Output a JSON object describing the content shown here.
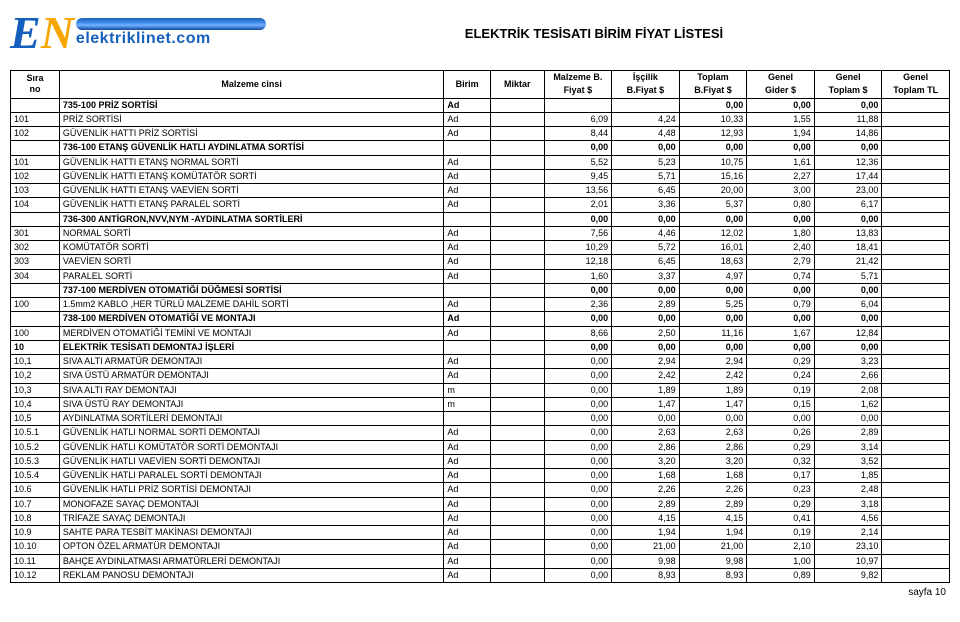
{
  "brand": {
    "e": "E",
    "n": "N",
    "domain": "elektriklinet.com"
  },
  "title": "ELEKTRİK TESİSATI BİRİM FİYAT LİSTESİ",
  "footer": "sayfa 10",
  "header": {
    "top": [
      "",
      "",
      "",
      "",
      "Malzeme B.",
      "İşçilik",
      "Toplam",
      "Genel",
      "Genel",
      "Genel"
    ],
    "bottom": [
      "Sıra no",
      "Malzeme cinsi",
      "Birim",
      "Miktar",
      "Fiyat $",
      "B.Fiyat $",
      "B.Fiyat $",
      "Gider $",
      "Toplam $",
      "Toplam TL"
    ]
  },
  "rows": [
    {
      "section": true,
      "no": "",
      "name": "735-100 PRİZ SORTİSİ",
      "birim": "Ad",
      "miktar": "",
      "c": [
        "",
        "",
        "0,00",
        "0,00",
        "0,00",
        ""
      ]
    },
    {
      "no": "101",
      "name": "PRİZ SORTİSİ",
      "birim": "Ad",
      "miktar": "",
      "c": [
        "6,09",
        "4,24",
        "10,33",
        "1,55",
        "11,88",
        ""
      ]
    },
    {
      "no": "102",
      "name": "GÜVENLİK HATTI PRİZ SORTİSİ",
      "birim": "Ad",
      "miktar": "",
      "c": [
        "8,44",
        "4,48",
        "12,93",
        "1,94",
        "14,86",
        ""
      ]
    },
    {
      "section": true,
      "no": "",
      "name": "736-100 ETANŞ GÜVENLİK HATLI AYDINLATMA SORTİSİ",
      "birim": "",
      "miktar": "",
      "c": [
        "0,00",
        "0,00",
        "0,00",
        "0,00",
        "0,00",
        ""
      ]
    },
    {
      "no": "101",
      "name": "GÜVENLİK HATTI ETANŞ NORMAL SORTİ",
      "birim": "Ad",
      "miktar": "",
      "c": [
        "5,52",
        "5,23",
        "10,75",
        "1,61",
        "12,36",
        ""
      ]
    },
    {
      "no": "102",
      "name": "GÜVENLİK HATTI ETANŞ KOMÜTATÖR SORTİ",
      "birim": "Ad",
      "miktar": "",
      "c": [
        "9,45",
        "5,71",
        "15,16",
        "2,27",
        "17,44",
        ""
      ]
    },
    {
      "no": "103",
      "name": "GÜVENLİK HATTI ETANŞ VAEVİEN SORTİ",
      "birim": "Ad",
      "miktar": "",
      "c": [
        "13,56",
        "6,45",
        "20,00",
        "3,00",
        "23,00",
        ""
      ]
    },
    {
      "no": "104",
      "name": "GÜVENLİK HATTI ETANŞ PARALEL SORTİ",
      "birim": "Ad",
      "miktar": "",
      "c": [
        "2,01",
        "3,36",
        "5,37",
        "0,80",
        "6,17",
        ""
      ]
    },
    {
      "section": true,
      "no": "",
      "name": "736-300 ANTİGRON,NVV,NYM -AYDINLATMA SORTİLERİ",
      "birim": "",
      "miktar": "",
      "c": [
        "0,00",
        "0,00",
        "0,00",
        "0,00",
        "0,00",
        ""
      ]
    },
    {
      "no": "301",
      "name": "NORMAL SORTİ",
      "birim": "Ad",
      "miktar": "",
      "c": [
        "7,56",
        "4,46",
        "12,02",
        "1,80",
        "13,83",
        ""
      ]
    },
    {
      "no": "302",
      "name": "KOMÜTATÖR SORTİ",
      "birim": "Ad",
      "miktar": "",
      "c": [
        "10,29",
        "5,72",
        "16,01",
        "2,40",
        "18,41",
        ""
      ]
    },
    {
      "no": "303",
      "name": "VAEVİEN SORTİ",
      "birim": "Ad",
      "miktar": "",
      "c": [
        "12,18",
        "6,45",
        "18,63",
        "2,79",
        "21,42",
        ""
      ]
    },
    {
      "no": "304",
      "name": "PARALEL SORTİ",
      "birim": "Ad",
      "miktar": "",
      "c": [
        "1,60",
        "3,37",
        "4,97",
        "0,74",
        "5,71",
        ""
      ]
    },
    {
      "section": true,
      "no": "",
      "name": "737-100 MERDİVEN OTOMATİĞİ DÜĞMESİ SORTİSİ",
      "birim": "",
      "miktar": "",
      "c": [
        "0,00",
        "0,00",
        "0,00",
        "0,00",
        "0,00",
        ""
      ]
    },
    {
      "no": "100",
      "name": "1.5mm2 KABLO ,HER TÜRLÜ MALZEME DAHİL SORTİ",
      "birim": "Ad",
      "miktar": "",
      "c": [
        "2,36",
        "2,89",
        "5,25",
        "0,79",
        "6,04",
        ""
      ]
    },
    {
      "section": true,
      "no": "",
      "name": "738-100 MERDİVEN OTOMATİĞİ VE MONTAJI",
      "birim": "Ad",
      "miktar": "",
      "c": [
        "0,00",
        "0,00",
        "0,00",
        "0,00",
        "0,00",
        ""
      ]
    },
    {
      "no": "100",
      "name": "MERDİVEN OTOMATİĞİ TEMİNİ VE MONTAJI",
      "birim": "Ad",
      "miktar": "",
      "c": [
        "8,66",
        "2,50",
        "11,16",
        "1,67",
        "12,84",
        ""
      ]
    },
    {
      "section": true,
      "no": "10",
      "name": "ELEKTRİK TESİSATI DEMONTAJ İŞLERİ",
      "birim": "",
      "miktar": "",
      "c": [
        "0,00",
        "0,00",
        "0,00",
        "0,00",
        "0,00",
        ""
      ]
    },
    {
      "no": "10,1",
      "name": "SIVA ALTI ARMATÜR DEMONTAJI",
      "birim": "Ad",
      "miktar": "",
      "c": [
        "0,00",
        "2,94",
        "2,94",
        "0,29",
        "3,23",
        ""
      ]
    },
    {
      "no": "10,2",
      "name": "SIVA ÜSTÜ ARMATÜR DEMONTAJI",
      "birim": "Ad",
      "miktar": "",
      "c": [
        "0,00",
        "2,42",
        "2,42",
        "0,24",
        "2,66",
        ""
      ]
    },
    {
      "no": "10,3",
      "name": "SIVA ALTI RAY DEMONTAJI",
      "birim": "m",
      "miktar": "",
      "c": [
        "0,00",
        "1,89",
        "1,89",
        "0,19",
        "2,08",
        ""
      ]
    },
    {
      "no": "10,4",
      "name": "SIVA ÜSTÜ RAY DEMONTAJI",
      "birim": "m",
      "miktar": "",
      "c": [
        "0,00",
        "1,47",
        "1,47",
        "0,15",
        "1,62",
        ""
      ]
    },
    {
      "no": "10,5",
      "name": "AYDINLATMA SORTİLERİ DEMONTAJI",
      "birim": "",
      "miktar": "",
      "c": [
        "0,00",
        "0,00",
        "0,00",
        "0,00",
        "0,00",
        ""
      ]
    },
    {
      "no": "10.5.1",
      "name": "GÜVENLİK HATLI NORMAL SORTİ DEMONTAJI",
      "birim": "Ad",
      "miktar": "",
      "c": [
        "0,00",
        "2,63",
        "2,63",
        "0,26",
        "2,89",
        ""
      ]
    },
    {
      "no": "10.5.2",
      "name": "GÜVENLİK HATLI KOMÜTATÖR SORTİ DEMONTAJI",
      "birim": "Ad",
      "miktar": "",
      "c": [
        "0,00",
        "2,86",
        "2,86",
        "0,29",
        "3,14",
        ""
      ]
    },
    {
      "no": "10.5.3",
      "name": "GÜVENLİK HATLI VAEVİEN SORTİ DEMONTAJI",
      "birim": "Ad",
      "miktar": "",
      "c": [
        "0,00",
        "3,20",
        "3,20",
        "0,32",
        "3,52",
        ""
      ]
    },
    {
      "no": "10.5.4",
      "name": "GÜVENLİK HATLI PARALEL SORTİ DEMONTAJI",
      "birim": "Ad",
      "miktar": "",
      "c": [
        "0,00",
        "1,68",
        "1,68",
        "0,17",
        "1,85",
        ""
      ]
    },
    {
      "no": "10.6",
      "name": "GÜVENLİK HATLI PRİZ SORTİSİ DEMONTAJI",
      "birim": "Ad",
      "miktar": "",
      "c": [
        "0,00",
        "2,26",
        "2,26",
        "0,23",
        "2,48",
        ""
      ]
    },
    {
      "no": "10.7",
      "name": "MONOFAZE SAYAÇ DEMONTAJI",
      "birim": "Ad",
      "miktar": "",
      "c": [
        "0,00",
        "2,89",
        "2,89",
        "0,29",
        "3,18",
        ""
      ]
    },
    {
      "no": "10.8",
      "name": "TRİFAZE SAYAÇ DEMONTAJI",
      "birim": "Ad",
      "miktar": "",
      "c": [
        "0,00",
        "4,15",
        "4,15",
        "0,41",
        "4,56",
        ""
      ]
    },
    {
      "no": "10.9",
      "name": "SAHTE PARA TESBİT MAKİNASI DEMONTAJI",
      "birim": "Ad",
      "miktar": "",
      "c": [
        "0,00",
        "1,94",
        "1,94",
        "0,19",
        "2,14",
        ""
      ]
    },
    {
      "no": "10.10",
      "name": "OPTON ÖZEL ARMATÜR DEMONTAJI",
      "birim": "Ad",
      "miktar": "",
      "c": [
        "0,00",
        "21,00",
        "21,00",
        "2,10",
        "23,10",
        ""
      ]
    },
    {
      "no": "10.11",
      "name": "BAHÇE AYDINLATMASI ARMATÜRLERİ DEMONTAJI",
      "birim": "Ad",
      "miktar": "",
      "c": [
        "0,00",
        "9,98",
        "9,98",
        "1,00",
        "10,97",
        ""
      ]
    },
    {
      "no": "10.12",
      "name": "REKLAM PANOSU DEMONTAJI",
      "birim": "Ad",
      "miktar": "",
      "c": [
        "0,00",
        "8,93",
        "8,93",
        "0,89",
        "9,82",
        ""
      ]
    }
  ]
}
